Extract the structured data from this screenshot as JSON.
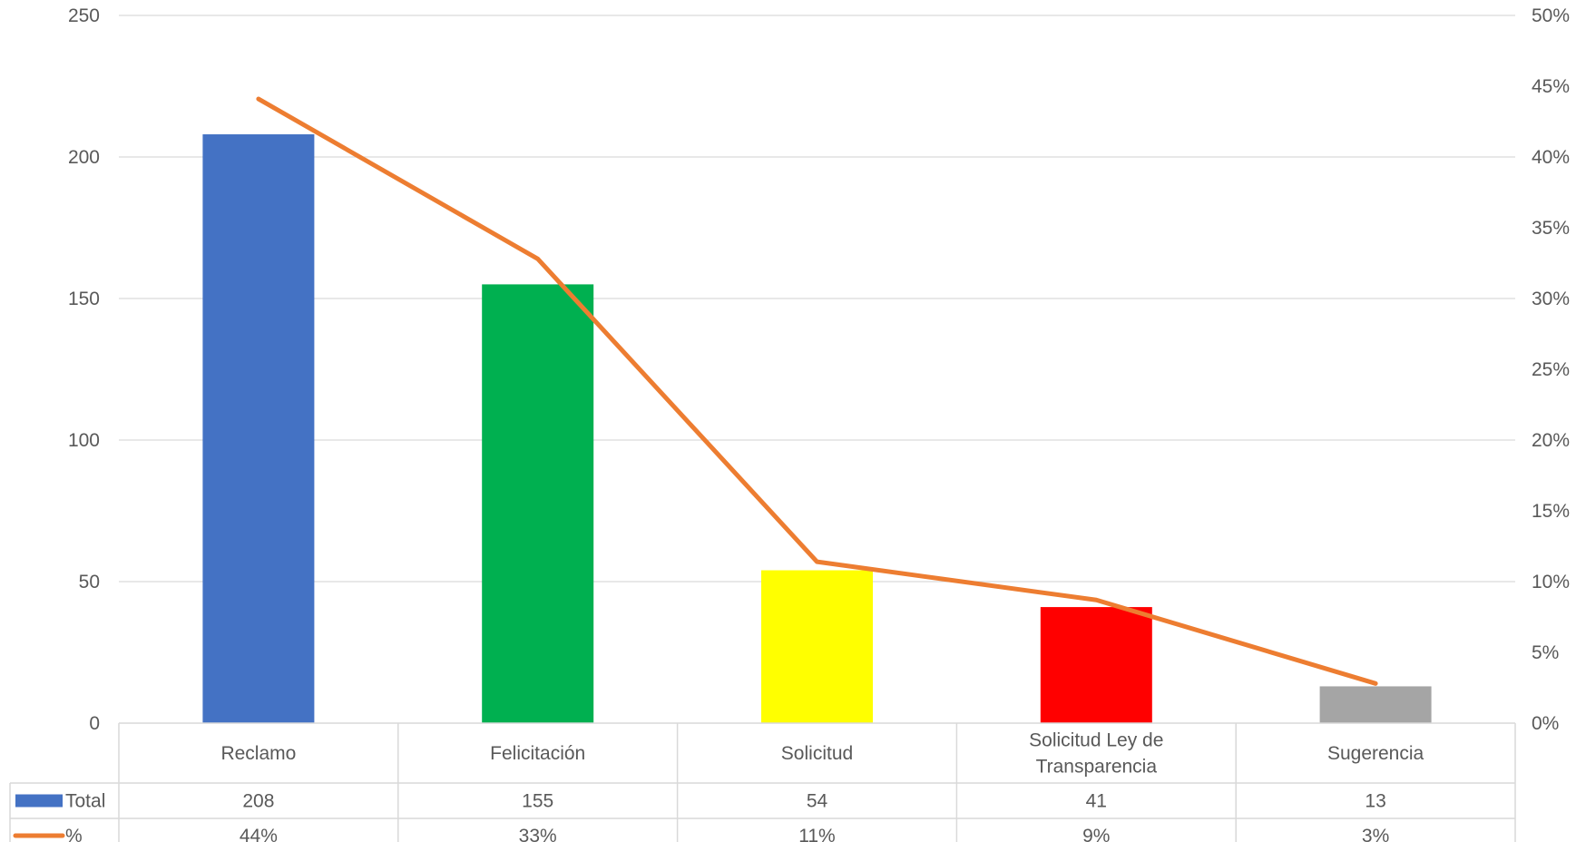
{
  "chart_data": {
    "type": "bar",
    "categories": [
      "Reclamo",
      "Felicitación",
      "Solicitud",
      "Solicitud Ley de Transparencia",
      "Sugerencia"
    ],
    "category_lines": [
      [
        "Reclamo"
      ],
      [
        "Felicitación"
      ],
      [
        "Solicitud"
      ],
      [
        "Solicitud Ley de",
        "Transparencia"
      ],
      [
        "Sugerencia"
      ]
    ],
    "series": [
      {
        "name": "Total",
        "kind": "bar",
        "axis": "left",
        "values": [
          208,
          155,
          54,
          41,
          13
        ],
        "labels": [
          "208",
          "155",
          "54",
          "41",
          "13"
        ],
        "colors": [
          "#4472C4",
          "#00B050",
          "#FFFF00",
          "#FF0000",
          "#A5A5A5"
        ],
        "legend_color": "#4472C4"
      },
      {
        "name": "%",
        "kind": "line",
        "axis": "right",
        "values": [
          44.1,
          32.8,
          11.4,
          8.7,
          2.8
        ],
        "labels": [
          "44%",
          "33%",
          "11%",
          "9%",
          "3%"
        ],
        "color": "#ED7D31"
      }
    ],
    "y_left": {
      "min": 0,
      "max": 250,
      "ticks": [
        "0",
        "50",
        "100",
        "150",
        "200",
        "250"
      ]
    },
    "y_right": {
      "min": 0,
      "max": 50,
      "ticks": [
        "0%",
        "5%",
        "10%",
        "15%",
        "20%",
        "25%",
        "30%",
        "35%",
        "40%",
        "45%",
        "50%"
      ]
    },
    "grid": true,
    "legend": "data-table"
  }
}
